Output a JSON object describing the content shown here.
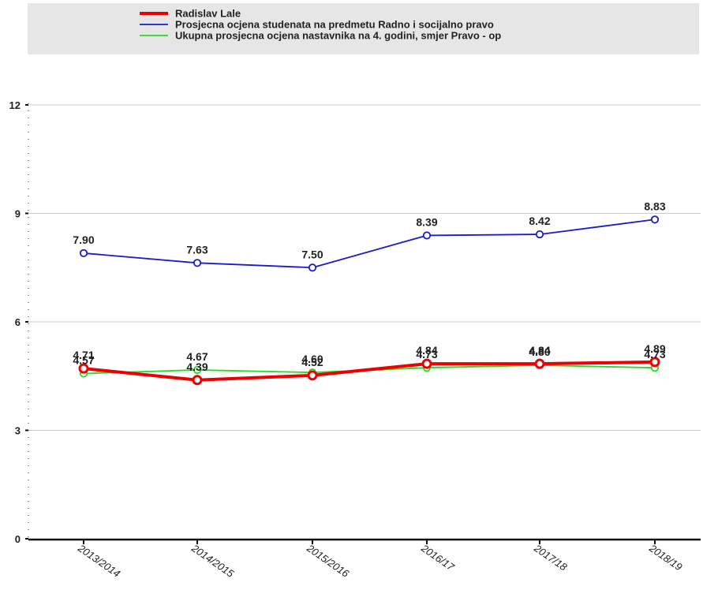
{
  "chart_data": {
    "type": "line",
    "categories": [
      "2013/2014",
      "2014/2015",
      "2015/2016",
      "2016/17",
      "2017/18",
      "2018/19"
    ],
    "ylim": [
      0,
      12
    ],
    "yticks": [
      0,
      3,
      6,
      9,
      12
    ],
    "grid": true,
    "legend_position": "top-left",
    "series": [
      {
        "name": "Radislav  Lale",
        "color": "#ee0000",
        "values": [
          4.71,
          4.39,
          4.52,
          4.84,
          4.84,
          4.89
        ],
        "labels": [
          "4.71",
          "4.39",
          "4.52",
          "4.84",
          "4.84",
          "4.89"
        ]
      },
      {
        "name": "Prosjecna ocjena studenata na predmetu Radno i socijalno pravo",
        "color": "#1a1ad0",
        "values": [
          7.9,
          7.63,
          7.5,
          8.39,
          8.42,
          8.83
        ],
        "labels": [
          "7.90",
          "7.63",
          "7.50",
          "8.39",
          "8.42",
          "8.83"
        ]
      },
      {
        "name": "Ukupna prosjecna ocjena nastavnika na 4. godini, smjer Pravo - op",
        "color": "#22dd22",
        "values": [
          4.57,
          4.67,
          4.6,
          4.73,
          4.8,
          4.73
        ],
        "labels": [
          "4.57",
          "4.67",
          "4.60",
          "4.73",
          "4.80",
          "4.73"
        ]
      }
    ]
  }
}
